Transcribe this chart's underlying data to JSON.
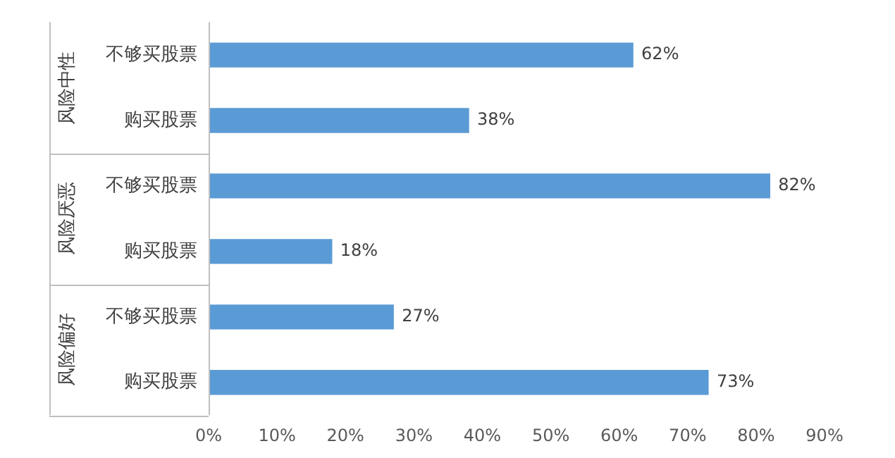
{
  "chart_data": {
    "type": "bar",
    "orientation": "horizontal",
    "categories": [
      "不够买股票",
      "购买股票",
      "不够买股票",
      "购买股票",
      "不够买股票",
      "购买股票"
    ],
    "values": [
      62,
      38,
      82,
      18,
      27,
      73
    ],
    "color": "#5b9bd5",
    "value_labels": [
      "62%",
      "38%",
      "82%",
      "18%",
      "27%",
      "73%"
    ],
    "annotations": [
      "风险中性",
      "风险厌恶",
      "风险偏好"
    ],
    "xlim": [
      0,
      90
    ],
    "xticks": [
      {
        "value": 0,
        "label": "0%"
      },
      {
        "value": 10,
        "label": "10%"
      },
      {
        "value": 20,
        "label": "20%"
      },
      {
        "value": 30,
        "label": "30%"
      },
      {
        "value": 40,
        "label": "40%"
      },
      {
        "value": 50,
        "label": "50%"
      },
      {
        "value": 60,
        "label": "60%"
      },
      {
        "value": 70,
        "label": "70%"
      },
      {
        "value": 80,
        "label": "80%"
      },
      {
        "value": 90,
        "label": "90%"
      }
    ],
    "grid": false,
    "legend": false
  }
}
